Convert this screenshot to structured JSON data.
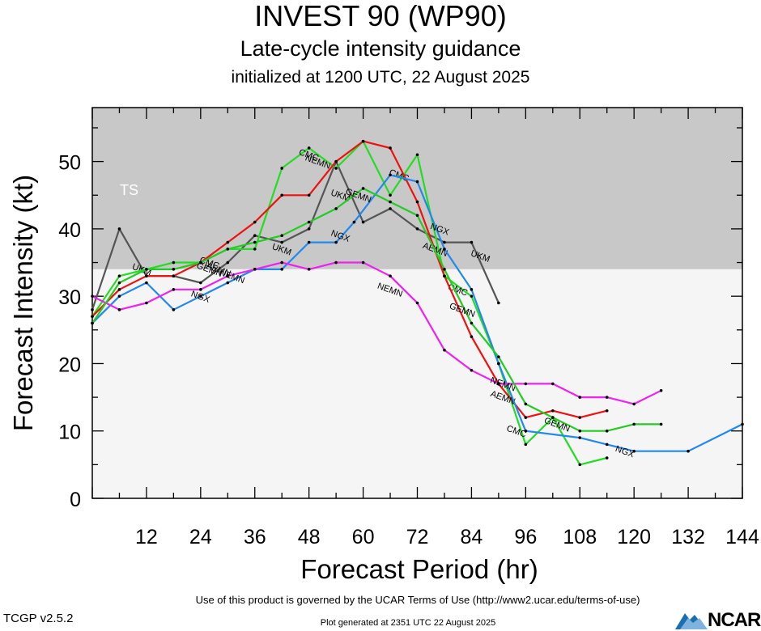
{
  "header": {
    "title": "INVEST 90 (WP90)",
    "subtitle": "Late-cycle intensity guidance",
    "init": "initialized at 1200 UTC, 22 August 2025"
  },
  "footer": {
    "terms": "Use of this product is governed by the UCAR Terms of Use (http://www2.ucar.edu/terms-of-use)",
    "generated": "Plot generated at 2351 UTC   22 August 2025",
    "version": "TCGP v2.5.2",
    "logo": "NCAR"
  },
  "chart_data": {
    "type": "line",
    "xlabel": "Forecast Period (hr)",
    "ylabel": "Forecast Intensity (kt)",
    "xlim": [
      0,
      144
    ],
    "ylim": [
      0,
      58
    ],
    "xticks": [
      12,
      24,
      36,
      48,
      60,
      72,
      84,
      96,
      108,
      120,
      132,
      144
    ],
    "yticks": [
      0,
      10,
      20,
      30,
      40,
      50
    ],
    "bands": [
      {
        "label": "TS",
        "from": 34,
        "to": 58,
        "color": "#c8c8c8"
      },
      {
        "label": "",
        "from": 0,
        "to": 34,
        "color": "#f5f5f5"
      }
    ],
    "series": [
      {
        "name": "UKM",
        "color": "#555555",
        "x": [
          0,
          6,
          12,
          18,
          24,
          30,
          36,
          42,
          48,
          54,
          60,
          66,
          72,
          78,
          84,
          90
        ],
        "y": [
          28,
          40,
          33,
          33,
          32,
          35,
          39,
          38,
          40,
          50,
          41,
          43,
          40,
          38,
          38,
          29
        ],
        "label_at": [
          [
            11,
            34
          ],
          [
            42,
            37
          ],
          [
            55,
            45
          ],
          [
            86,
            36
          ]
        ]
      },
      {
        "name": "CMC",
        "color": "#22dd22",
        "x": [
          0,
          6,
          12,
          18,
          24,
          30,
          36,
          42,
          48,
          54,
          60,
          66,
          72,
          78,
          84,
          90,
          96,
          102,
          108,
          114
        ],
        "y": [
          27,
          33,
          34,
          35,
          35,
          37,
          37,
          49,
          52,
          49,
          53,
          45,
          51,
          33,
          30,
          20,
          8,
          12,
          5,
          6
        ],
        "label_at": [
          [
            26,
            35
          ],
          [
            48,
            51
          ],
          [
            68,
            48
          ],
          [
            81,
            31
          ],
          [
            94,
            10
          ]
        ]
      },
      {
        "name": "AEMN",
        "color": "#ee1111",
        "x": [
          0,
          6,
          12,
          18,
          24,
          30,
          36,
          42,
          48,
          54,
          60,
          66,
          72,
          78,
          84,
          90,
          96,
          102,
          108,
          114
        ],
        "y": [
          27,
          31,
          33,
          33,
          35,
          38,
          41,
          45,
          45,
          50,
          53,
          52,
          44,
          33,
          24,
          17,
          12,
          13,
          12,
          13
        ],
        "label_at": [
          [
            28,
            34
          ],
          [
            76,
            37
          ],
          [
            91,
            15
          ]
        ]
      },
      {
        "name": "NGX",
        "color": "#2288ee",
        "x": [
          0,
          6,
          12,
          18,
          24,
          30,
          36,
          42,
          48,
          54,
          58,
          66,
          72,
          78,
          84,
          90,
          96,
          108,
          114,
          120,
          132,
          144
        ],
        "y": [
          26,
          30,
          32,
          28,
          30,
          32,
          34,
          34,
          38,
          38,
          41,
          48,
          47,
          37,
          31,
          20,
          10,
          9,
          8,
          7,
          7,
          11
        ],
        "label_at": [
          [
            24,
            30
          ],
          [
            55,
            39
          ],
          [
            77,
            40
          ],
          [
            118,
            7
          ]
        ]
      },
      {
        "name": "NEMN",
        "color": "#ee22ee",
        "x": [
          0,
          6,
          12,
          18,
          24,
          30,
          36,
          42,
          48,
          54,
          60,
          66,
          72,
          78,
          84,
          90,
          96,
          102,
          108,
          114,
          120,
          126
        ],
        "y": [
          30,
          28,
          29,
          31,
          31,
          33,
          34,
          35,
          34,
          35,
          35,
          33,
          29,
          22,
          19,
          17,
          17,
          17,
          15,
          15,
          14,
          16
        ],
        "label_at": [
          [
            31,
            33
          ],
          [
            50,
            50
          ],
          [
            66,
            31
          ],
          [
            91,
            17
          ]
        ]
      },
      {
        "name": "GEMN",
        "color": "#22cc22",
        "x": [
          0,
          6,
          12,
          18,
          24,
          30,
          36,
          42,
          48,
          54,
          60,
          66,
          72,
          78,
          84,
          90,
          96,
          102,
          108,
          114,
          120,
          126
        ],
        "y": [
          26,
          32,
          34,
          34,
          35,
          37,
          38,
          39,
          41,
          43,
          46,
          44,
          42,
          34,
          26,
          21,
          14,
          12,
          10,
          10,
          11,
          11
        ],
        "label_at": [
          [
            26,
            34
          ],
          [
            59,
            45
          ],
          [
            82,
            28
          ],
          [
            103,
            11
          ]
        ]
      }
    ]
  }
}
